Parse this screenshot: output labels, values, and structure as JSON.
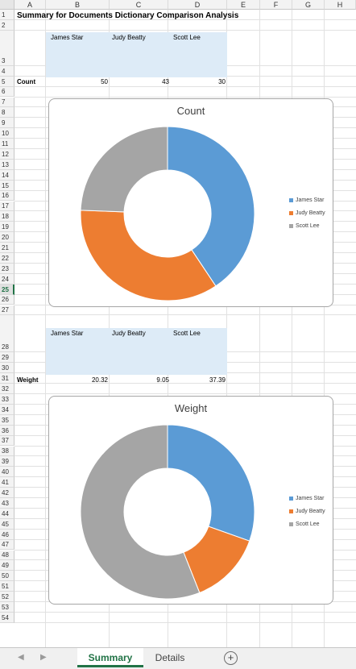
{
  "sheet": {
    "columns": [
      "A",
      "B",
      "C",
      "D",
      "E",
      "F",
      "G",
      "H"
    ],
    "rows": [
      "1",
      "2",
      "3",
      "4",
      "5",
      "6",
      "7",
      "8",
      "9",
      "10",
      "11",
      "12",
      "13",
      "14",
      "15",
      "16",
      "17",
      "18",
      "19",
      "20",
      "21",
      "22",
      "23",
      "24",
      "25",
      "26",
      "27",
      "28",
      "29",
      "30",
      "31",
      "32",
      "33",
      "34",
      "35",
      "36",
      "37",
      "38",
      "39",
      "40",
      "41",
      "42",
      "43",
      "44",
      "45",
      "46",
      "47",
      "48",
      "49",
      "50",
      "51",
      "52",
      "53",
      "54"
    ],
    "active_row": "25",
    "title": "Summary for Documents Dictionary Comparison Analysis",
    "names": [
      "James Star",
      "Judy Beatty",
      "Scott Lee"
    ],
    "count_label": "Count",
    "count_values": [
      "50",
      "43",
      "30"
    ],
    "weight_label": "Weight",
    "weight_values": [
      "20.32",
      "9.05",
      "37.39"
    ]
  },
  "colors": {
    "series": [
      "#5b9bd5",
      "#ed7d31",
      "#a5a5a5"
    ]
  },
  "chart_data": [
    {
      "type": "pie",
      "title": "Count",
      "categories": [
        "James Star",
        "Judy Beatty",
        "Scott Lee"
      ],
      "values": [
        50,
        43,
        30
      ],
      "legend": "right"
    },
    {
      "type": "pie",
      "title": "Weight",
      "categories": [
        "James Star",
        "Judy Beatty",
        "Scott Lee"
      ],
      "values": [
        20.32,
        9.05,
        37.39
      ],
      "legend": "right"
    }
  ],
  "tabs": {
    "summary": "Summary",
    "details": "Details",
    "add": "+",
    "prev": "◀",
    "next": "▶"
  }
}
